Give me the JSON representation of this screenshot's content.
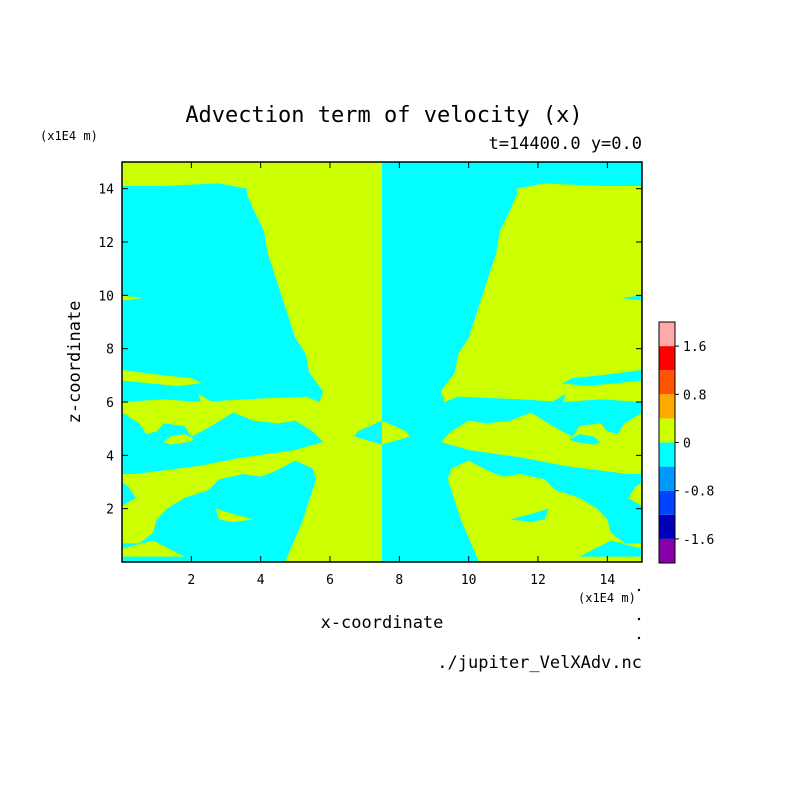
{
  "chart_data": {
    "type": "heatmap",
    "title": "Advection term of velocity (x)",
    "subtitle": "t=14400.0 y=0.0",
    "xlabel": "x-coordinate",
    "ylabel": "z-coordinate",
    "x_scale_label": "(x1E4 m)",
    "y_scale_label": "(x1E4 m)",
    "xlim": [
      0,
      15
    ],
    "ylim": [
      0,
      15
    ],
    "x_ticks": [
      "2",
      "4",
      "6",
      "8",
      "10",
      "12",
      "14"
    ],
    "y_ticks": [
      "2",
      "4",
      "6",
      "8",
      "10",
      "12",
      "14"
    ],
    "colorbar": {
      "levels": [
        -2.0,
        -1.6,
        -1.2,
        -0.8,
        -0.4,
        0.0,
        0.4,
        0.8,
        1.2,
        1.6,
        2.0
      ],
      "colors": [
        "#8800aa",
        "#0000bb",
        "#0044ff",
        "#0099ff",
        "#00ffff",
        "#ccff00",
        "#ffaa00",
        "#ff5500",
        "#ff0000",
        "#ffaaaa"
      ],
      "tick_labels": [
        "1.6",
        "0.8",
        "0",
        "-0.8",
        "-1.6"
      ],
      "tick_values": [
        1.6,
        0.8,
        0.0,
        -0.8,
        -1.6
      ]
    },
    "regions": [
      {
        "value": 0.2,
        "polygon": [
          [
            0,
            15
          ],
          [
            7.5,
            15
          ],
          [
            7.5,
            0
          ],
          [
            4.7,
            0
          ],
          [
            4.9,
            0.6
          ],
          [
            5.2,
            1.5
          ],
          [
            5.4,
            2.3
          ],
          [
            5.6,
            3.1
          ],
          [
            5.5,
            3.5
          ],
          [
            5.0,
            3.8
          ],
          [
            4.4,
            3.4
          ],
          [
            4.0,
            3.2
          ],
          [
            3.5,
            3.3
          ],
          [
            2.8,
            3.1
          ],
          [
            2.5,
            2.7
          ],
          [
            1.8,
            2.4
          ],
          [
            1.3,
            2.0
          ],
          [
            1.0,
            1.6
          ],
          [
            0.9,
            1.1
          ],
          [
            0.5,
            0.7
          ],
          [
            0,
            0.7
          ],
          [
            0,
            2.1
          ],
          [
            0.4,
            2.4
          ],
          [
            0.2,
            2.8
          ],
          [
            0,
            3.0
          ],
          [
            0,
            3.3
          ],
          [
            0.4,
            3.3
          ],
          [
            1.0,
            3.4
          ],
          [
            2.2,
            3.6
          ],
          [
            3.4,
            3.9
          ],
          [
            5.0,
            4.2
          ],
          [
            5.8,
            4.5
          ],
          [
            5.5,
            4.9
          ],
          [
            5.0,
            5.3
          ],
          [
            4.5,
            5.2
          ],
          [
            3.8,
            5.3
          ],
          [
            3.2,
            5.6
          ],
          [
            2.7,
            5.2
          ],
          [
            2.3,
            4.9
          ],
          [
            2.0,
            4.7
          ],
          [
            1.8,
            5.1
          ],
          [
            1.2,
            5.2
          ],
          [
            1.0,
            4.9
          ],
          [
            0.7,
            4.8
          ],
          [
            0.5,
            5.2
          ],
          [
            0,
            5.6
          ],
          [
            0,
            6.0
          ],
          [
            1.2,
            6.1
          ],
          [
            2.3,
            6.0
          ],
          [
            3.5,
            6.1
          ],
          [
            5.3,
            6.2
          ],
          [
            5.7,
            6.0
          ],
          [
            5.8,
            6.4
          ],
          [
            5.4,
            7.1
          ],
          [
            5.3,
            7.8
          ],
          [
            5.0,
            8.4
          ],
          [
            4.8,
            9.2
          ],
          [
            4.6,
            10.0
          ],
          [
            4.4,
            10.8
          ],
          [
            4.2,
            11.6
          ],
          [
            4.1,
            12.4
          ],
          [
            3.8,
            13.2
          ],
          [
            3.6,
            13.8
          ],
          [
            3.6,
            14.0
          ],
          [
            2.8,
            14.2
          ],
          [
            1.2,
            14.1
          ],
          [
            0,
            14.1
          ]
        ]
      },
      {
        "value": 0.2,
        "polygon": [
          [
            0,
            7.2
          ],
          [
            1.2,
            7.0
          ],
          [
            2.0,
            6.9
          ],
          [
            2.3,
            6.7
          ],
          [
            1.6,
            6.6
          ],
          [
            0.8,
            6.7
          ],
          [
            0,
            6.8
          ]
        ]
      },
      {
        "value": 0.2,
        "polygon": [
          [
            2.2,
            6.3
          ],
          [
            2.6,
            6.0
          ],
          [
            3.0,
            5.9
          ],
          [
            2.6,
            5.7
          ],
          [
            2.3,
            5.9
          ]
        ]
      },
      {
        "value": 0.2,
        "polygon": [
          [
            1.8,
            4.8
          ],
          [
            2.1,
            4.6
          ],
          [
            1.9,
            4.5
          ],
          [
            1.4,
            4.4
          ],
          [
            1.2,
            4.5
          ],
          [
            1.4,
            4.7
          ]
        ]
      },
      {
        "value": 0.2,
        "polygon": [
          [
            2.7,
            2.0
          ],
          [
            3.2,
            1.8
          ],
          [
            3.8,
            1.6
          ],
          [
            3.2,
            1.5
          ],
          [
            2.8,
            1.6
          ]
        ]
      },
      {
        "value": 0.2,
        "polygon": [
          [
            0,
            10.0
          ],
          [
            0.6,
            9.9
          ],
          [
            0,
            9.8
          ]
        ]
      },
      {
        "value": 0.2,
        "polygon": [
          [
            0,
            0.2
          ],
          [
            1.8,
            0.2
          ],
          [
            0.9,
            0.8
          ],
          [
            0.3,
            0.6
          ],
          [
            0,
            0.5
          ]
        ]
      }
    ]
  },
  "colorbar_labels": [
    "1.6",
    "0.8",
    "0",
    "-0.8",
    "-1.6"
  ],
  "source_file": "./jupiter_VelXAdv.nc"
}
